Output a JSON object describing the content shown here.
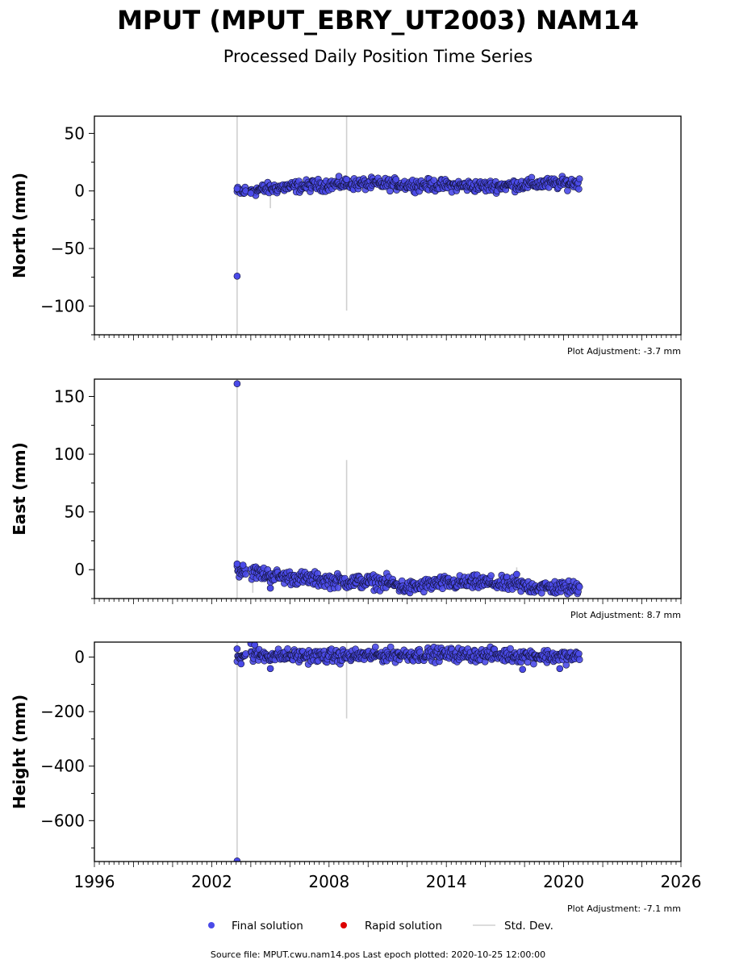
{
  "header": {
    "title": "MPUT (MPUT_EBRY_UT2003) NAM14",
    "subtitle": "Processed Daily Position Time Series"
  },
  "footer": {
    "source": "Source file: MPUT.cwu.nam14.pos  Last epoch plotted: 2020-10-25 12:00:00"
  },
  "legend": {
    "placement": "bottom-center",
    "items": [
      {
        "label": "Final solution",
        "color": "#4a4ae8",
        "marker": "circle"
      },
      {
        "label": "Rapid solution",
        "color": "#dd0000",
        "marker": "circle"
      },
      {
        "label": "Std. Dev.",
        "color": "#d0d0d0",
        "marker": "line"
      }
    ]
  },
  "chart_data": [
    {
      "type": "scatter",
      "ylabel": "North (mm)",
      "ylim": [
        -125,
        65
      ],
      "yticks": [
        50,
        0,
        -50,
        -100
      ],
      "ytick_labels": [
        "50",
        "0",
        "−50",
        "−100"
      ],
      "xlim": [
        1996,
        2026
      ],
      "adjustment": "Plot Adjustment: -3.7 mm",
      "trend": [
        [
          2003.3,
          -1
        ],
        [
          2005.5,
          3
        ],
        [
          2008.5,
          6
        ],
        [
          2011,
          6
        ],
        [
          2013.5,
          5
        ],
        [
          2016,
          4
        ],
        [
          2018.5,
          6
        ],
        [
          2020.8,
          7
        ]
      ],
      "scatter_amplitude": 2.5,
      "outliers": [
        [
          2003.3,
          -74
        ],
        [
          2003.3,
          2
        ],
        [
          2004.0,
          -2
        ],
        [
          2008.9,
          10
        ]
      ],
      "stddev_bars": [
        [
          2003.3,
          -125,
          65
        ],
        [
          2008.9,
          -104,
          65
        ],
        [
          2005.0,
          -15,
          5
        ]
      ]
    },
    {
      "type": "scatter",
      "ylabel": "East (mm)",
      "ylim": [
        -25,
        165
      ],
      "yticks": [
        150,
        100,
        50,
        0
      ],
      "ytick_labels": [
        "150",
        "100",
        "50",
        "0"
      ],
      "xlim": [
        1996,
        2026
      ],
      "adjustment": "Plot Adjustment: 8.7 mm",
      "trend": [
        [
          2003.3,
          0
        ],
        [
          2005.5,
          -6
        ],
        [
          2008.5,
          -10
        ],
        [
          2011,
          -11
        ],
        [
          2012,
          -16
        ],
        [
          2013.5,
          -12
        ],
        [
          2016,
          -11
        ],
        [
          2018.5,
          -15
        ],
        [
          2020.8,
          -16
        ]
      ],
      "scatter_amplitude": 3,
      "outliers": [
        [
          2003.3,
          161
        ],
        [
          2003.3,
          5
        ],
        [
          2003.6,
          4
        ],
        [
          2005.0,
          -16
        ],
        [
          2017.6,
          -4
        ]
      ],
      "stddev_bars": [
        [
          2003.3,
          -25,
          165
        ],
        [
          2008.9,
          -25,
          95
        ],
        [
          2004.1,
          -20,
          0
        ],
        [
          2017.6,
          -18,
          2
        ]
      ]
    },
    {
      "type": "scatter",
      "ylabel": "Height (mm)",
      "ylim": [
        -750,
        55
      ],
      "yticks": [
        0,
        -200,
        -400,
        -600
      ],
      "ytick_labels": [
        "0",
        "−200",
        "−400",
        "−600"
      ],
      "xlim": [
        1996,
        2026
      ],
      "xticks": [
        1996,
        2002,
        2008,
        2014,
        2020,
        2026
      ],
      "xtick_labels": [
        "1996",
        "2002",
        "2008",
        "2014",
        "2020",
        "2026"
      ],
      "adjustment": "Plot Adjustment: -7.1 mm",
      "trend": [
        [
          2003.3,
          8
        ],
        [
          2005.5,
          5
        ],
        [
          2008.5,
          3
        ],
        [
          2011,
          8
        ],
        [
          2013.5,
          10
        ],
        [
          2016,
          8
        ],
        [
          2018.5,
          5
        ],
        [
          2020.8,
          0
        ]
      ],
      "scatter_amplitude": 12,
      "outliers": [
        [
          2003.3,
          -748
        ],
        [
          2003.3,
          30
        ],
        [
          2003.5,
          -25
        ],
        [
          2004.0,
          50
        ],
        [
          2004.2,
          45
        ],
        [
          2005.0,
          -42
        ],
        [
          2017.9,
          -45
        ],
        [
          2019.8,
          -42
        ]
      ],
      "stddev_bars": [
        [
          2003.3,
          -750,
          55
        ],
        [
          2008.9,
          -225,
          55
        ]
      ]
    }
  ]
}
